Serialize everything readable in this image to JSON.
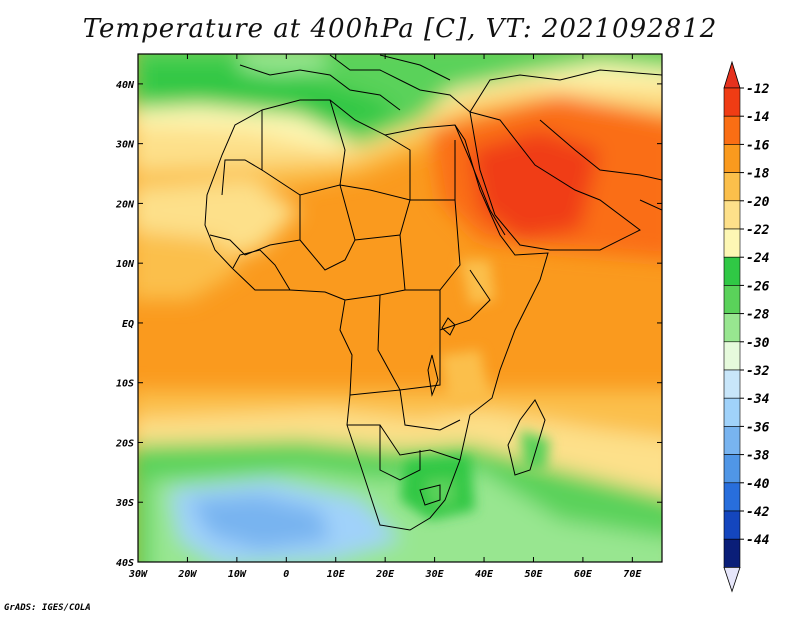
{
  "title": "Temperature at 400hPa [C], VT: 2021092812",
  "credit": "GrADS: IGES/COLA",
  "map": {
    "lon_ticks": [
      {
        "lon": -30,
        "label": "30W"
      },
      {
        "lon": -20,
        "label": "20W"
      },
      {
        "lon": -10,
        "label": "10W"
      },
      {
        "lon": 0,
        "label": "0"
      },
      {
        "lon": 10,
        "label": "10E"
      },
      {
        "lon": 20,
        "label": "20E"
      },
      {
        "lon": 30,
        "label": "30E"
      },
      {
        "lon": 40,
        "label": "40E"
      },
      {
        "lon": 50,
        "label": "50E"
      },
      {
        "lon": 60,
        "label": "60E"
      },
      {
        "lon": 70,
        "label": "70E"
      }
    ],
    "lat_ticks": [
      {
        "lat": 40,
        "label": "40N"
      },
      {
        "lat": 30,
        "label": "30N"
      },
      {
        "lat": 20,
        "label": "20N"
      },
      {
        "lat": 10,
        "label": "10N"
      },
      {
        "lat": 0,
        "label": "EQ"
      },
      {
        "lat": -10,
        "label": "10S"
      },
      {
        "lat": -20,
        "label": "20S"
      },
      {
        "lat": -30,
        "label": "30S"
      },
      {
        "lat": -40,
        "label": "40S"
      }
    ],
    "lon_range": [
      -30,
      76
    ],
    "lat_range": [
      -40,
      45
    ]
  },
  "colorbar": {
    "levels": [
      {
        "label": "-12",
        "color": "#f03c14"
      },
      {
        "label": "-14",
        "color": "#fa6e14"
      },
      {
        "label": "-16",
        "color": "#fa9a1e"
      },
      {
        "label": "-18",
        "color": "#fbbf4b"
      },
      {
        "label": "-20",
        "color": "#fde08a"
      },
      {
        "label": "-22",
        "color": "#fdf7b4"
      },
      {
        "label": "-24",
        "color": "#30c845"
      },
      {
        "label": "-26",
        "color": "#5ad25a"
      },
      {
        "label": "-28",
        "color": "#98e690"
      },
      {
        "label": "-30",
        "color": "#e6fadc"
      },
      {
        "label": "-32",
        "color": "#c8e6fa"
      },
      {
        "label": "-34",
        "color": "#a0d2fa"
      },
      {
        "label": "-36",
        "color": "#78b4f0"
      },
      {
        "label": "-38",
        "color": "#5096e6"
      },
      {
        "label": "-40",
        "color": "#286edc"
      },
      {
        "label": "-42",
        "color": "#1446be"
      },
      {
        "label": "-44",
        "color": "#0a1e78"
      }
    ],
    "top_arrow_color": "#e6321e",
    "bottom_arrow_color": "#e6e6fa"
  }
}
